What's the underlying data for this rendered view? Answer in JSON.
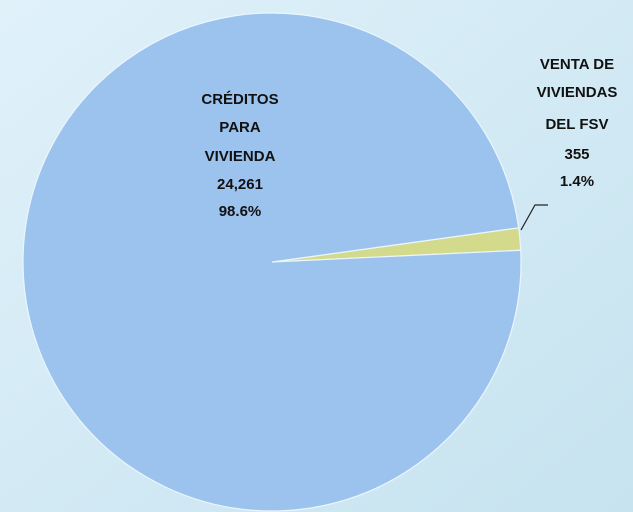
{
  "chart_data": {
    "type": "pie",
    "categories": [
      [
        "CRÉDITOS",
        "PARA",
        "VIVIENDA"
      ],
      [
        "VENTA DE",
        "VIVIENDAS",
        "DEL FSV"
      ]
    ],
    "values": [
      24261,
      355
    ],
    "value_labels": [
      "24,261",
      "355"
    ],
    "percentages": [
      98.6,
      1.4
    ],
    "percentage_labels": [
      "98.6%",
      "1.4%"
    ],
    "colors": [
      "#9cc2ee",
      "#d4da8c"
    ]
  }
}
